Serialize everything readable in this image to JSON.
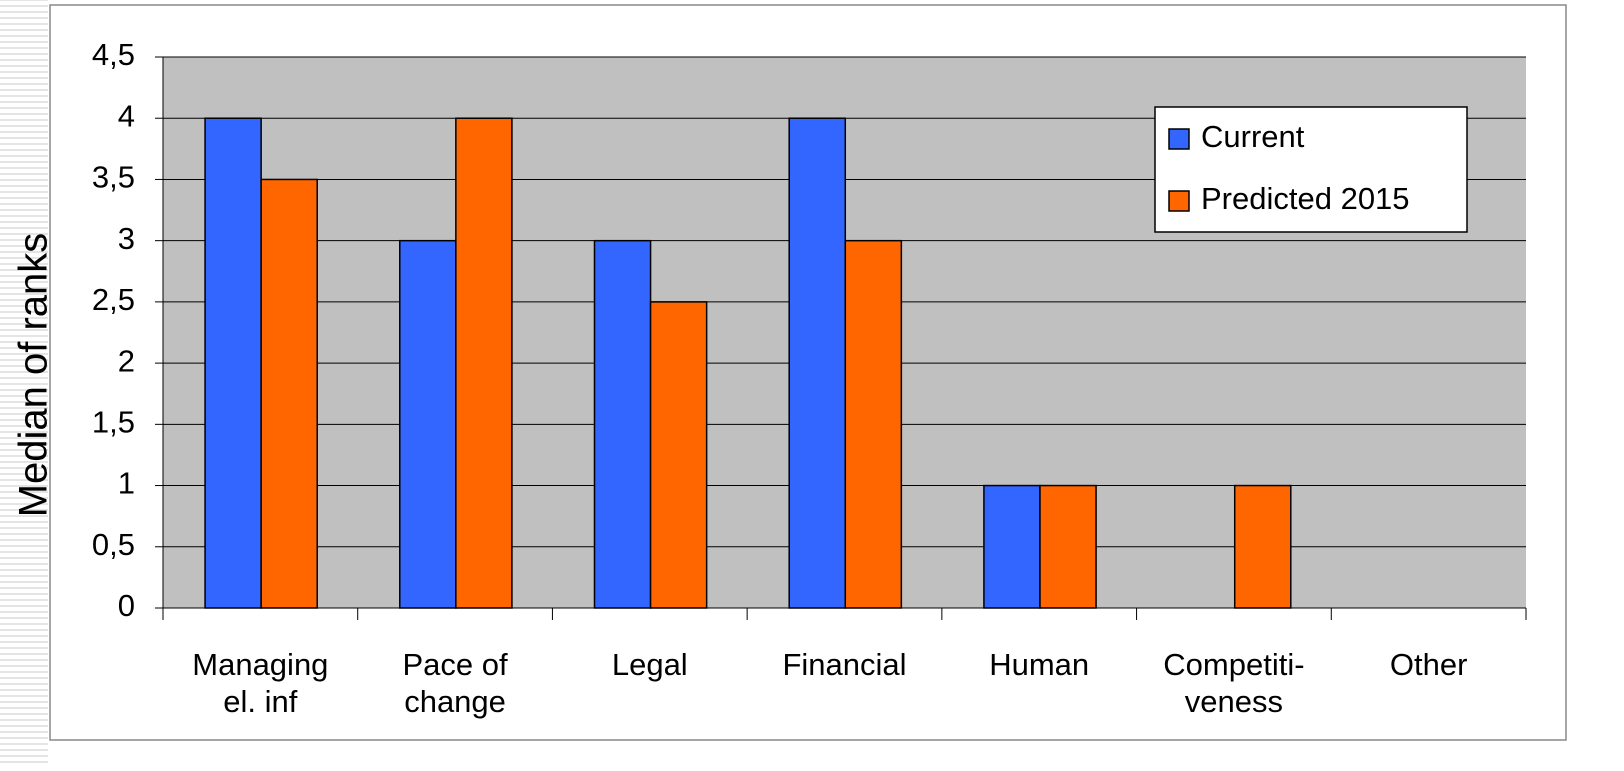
{
  "chart_data": {
    "type": "bar",
    "y_label": "Median of ranks",
    "categories": [
      "Managing\nel. inf",
      "Pace of\nchange",
      "Legal",
      "Financial",
      "Human",
      "Competiti-\nveness",
      "Other"
    ],
    "series": [
      {
        "name": "Current",
        "color": "#3366ff",
        "values": [
          4,
          3,
          3,
          4,
          1,
          null,
          null
        ]
      },
      {
        "name": "Predicted 2015",
        "color": "#ff6600",
        "values": [
          3.5,
          4,
          2.5,
          3,
          1,
          1,
          null
        ]
      }
    ],
    "ylim": [
      0,
      4.5
    ],
    "yticks": [
      0,
      {
        "value": 0.5,
        "label": "0,5"
      },
      1,
      {
        "value": 1.5,
        "label": "1,5"
      },
      2,
      {
        "value": 2.5,
        "label": "2,5"
      },
      3,
      {
        "value": 3.5,
        "label": "3,5"
      },
      4,
      {
        "value": 4.5,
        "label": "4,5"
      }
    ],
    "grid": true,
    "legend": "upper right",
    "plot_background": "#c0c0c0"
  }
}
